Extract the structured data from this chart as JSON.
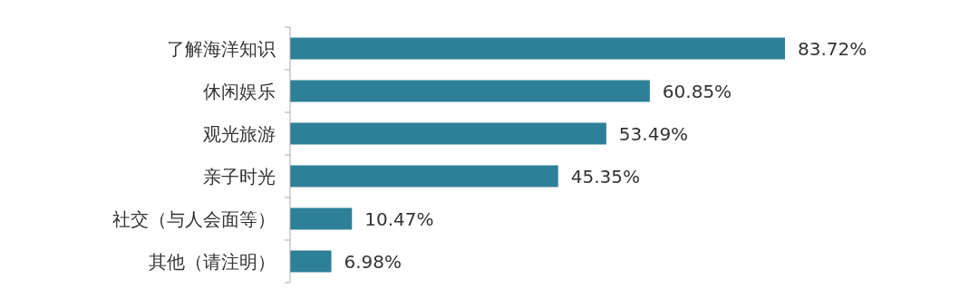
{
  "chart_data": {
    "type": "bar",
    "orientation": "horizontal",
    "categories": [
      "了解海洋知识",
      "休闲娱乐",
      "观光旅游",
      "亲子时光",
      "社交（与人会面等）",
      "其他（请注明）"
    ],
    "values": [
      83.72,
      60.85,
      53.49,
      45.35,
      10.47,
      6.98
    ],
    "value_labels": [
      "83.72%",
      "60.85%",
      "53.49%",
      "45.35%",
      "10.47%",
      "6.98%"
    ],
    "color": "#2e8098"
  }
}
